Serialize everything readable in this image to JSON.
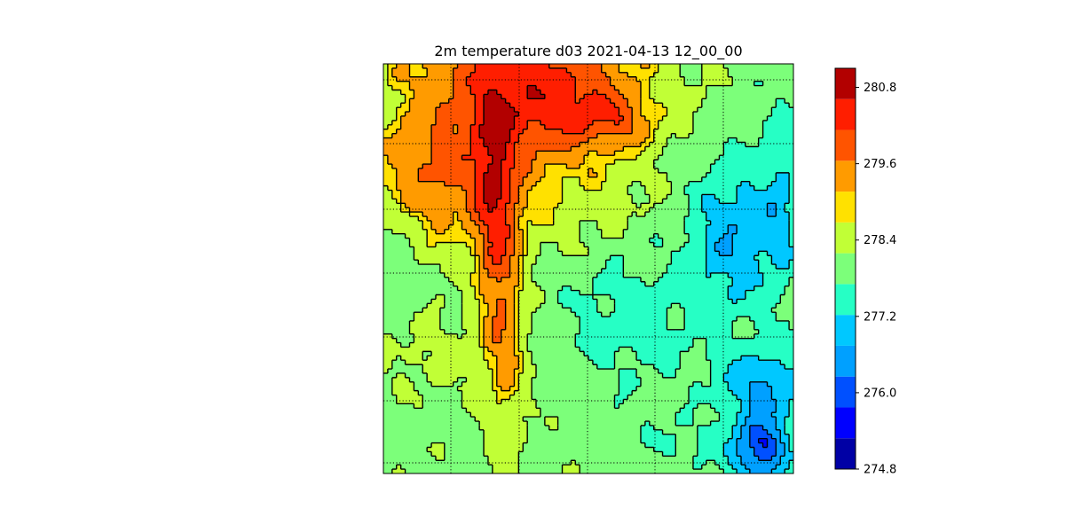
{
  "chart_data": {
    "type": "heatmap",
    "subtype": "filled-contour-map",
    "title": "2m temperature d03 2021-04-13 12_00_00",
    "colorbar": {
      "min": 274.8,
      "max": 281.1,
      "tick_values": [
        274.8,
        276.0,
        277.2,
        278.4,
        279.6,
        280.8
      ],
      "tick_labels": [
        "274.8",
        "276.0",
        "277.2",
        "278.4",
        "279.6",
        "280.8"
      ],
      "levels": [
        274.8,
        275.1,
        275.7,
        276.0,
        276.6,
        277.2,
        277.8,
        278.4,
        279.0,
        279.3,
        279.9,
        280.5,
        281.1
      ],
      "colors": [
        "#0000a5",
        "#0000ff",
        "#0050ff",
        "#00a0ff",
        "#00c8ff",
        "#26ffc5",
        "#7cff7a",
        "#c1ff36",
        "#ffe100",
        "#ff9b00",
        "#ff5400",
        "#ff1e00",
        "#b20000"
      ]
    },
    "map": {
      "graticule": "dotted",
      "warm_tongue_peak": 281.0,
      "cold_pool_min": 275.3
    }
  }
}
